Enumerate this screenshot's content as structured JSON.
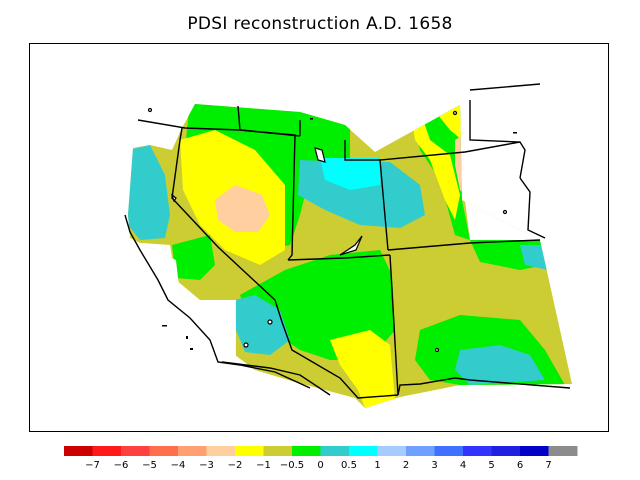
{
  "title": "PDSI reconstruction A.D. 1658",
  "legend": {
    "swatches": [
      {
        "color": "#cc0000"
      },
      {
        "color": "#ff1a1a"
      },
      {
        "color": "#ff4040"
      },
      {
        "color": "#ff6f4c"
      },
      {
        "color": "#ffa073"
      },
      {
        "color": "#ffcfa0"
      },
      {
        "color": "#ffff00"
      },
      {
        "color": "#cccc33"
      },
      {
        "color": "#00ee00"
      },
      {
        "color": "#33cccc"
      },
      {
        "color": "#00ffff"
      },
      {
        "color": "#a6ccff"
      },
      {
        "color": "#6f9fff"
      },
      {
        "color": "#4070ff"
      },
      {
        "color": "#3333ff"
      },
      {
        "color": "#2020e0"
      },
      {
        "color": "#0000c8"
      },
      {
        "color": "#8c8c8c"
      }
    ],
    "labels": [
      "−7",
      "−6",
      "−5",
      "−4",
      "−3",
      "−2",
      "−1",
      "−0.5",
      "0",
      "0.5",
      "1",
      "2",
      "3",
      "4",
      "5",
      "6",
      "7"
    ]
  },
  "colors": {
    "yellow": "#ffff00",
    "olive": "#cccc33",
    "green": "#00ee00",
    "teal": "#33cccc",
    "cyan": "#00ffff",
    "peach": "#ffcfa0",
    "border": "#000000"
  }
}
